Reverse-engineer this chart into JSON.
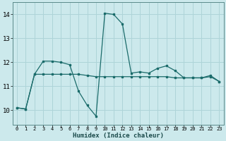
{
  "xlabel": "Humidex (Indice chaleur)",
  "background_color": "#cce9ec",
  "grid_color": "#aed4d8",
  "line_color": "#1a6b6a",
  "x_ticks": [
    0,
    1,
    2,
    3,
    4,
    5,
    6,
    7,
    8,
    9,
    10,
    11,
    12,
    13,
    14,
    15,
    16,
    17,
    18,
    19,
    20,
    21,
    22,
    23
  ],
  "y_ticks": [
    10,
    11,
    12,
    13,
    14
  ],
  "ylim": [
    9.4,
    14.5
  ],
  "xlim": [
    -0.5,
    23.5
  ],
  "line1_x": [
    0,
    1,
    2,
    3,
    4,
    5,
    6,
    7,
    8,
    9,
    10,
    11,
    12,
    13,
    14,
    15,
    16,
    17,
    18,
    19,
    20,
    21,
    22,
    23
  ],
  "line1_y": [
    10.1,
    10.05,
    11.5,
    12.05,
    12.05,
    12.0,
    11.9,
    10.8,
    10.2,
    9.75,
    14.05,
    14.0,
    13.6,
    11.55,
    11.6,
    11.55,
    11.75,
    11.85,
    11.65,
    11.35,
    11.35,
    11.35,
    11.45,
    11.2
  ],
  "line2_x": [
    0,
    1,
    2,
    3,
    4,
    5,
    6,
    7,
    8,
    9,
    10,
    11,
    12,
    13,
    14,
    15,
    16,
    17,
    18,
    19,
    20,
    21,
    22,
    23
  ],
  "line2_y": [
    10.1,
    10.05,
    11.5,
    11.5,
    11.5,
    11.5,
    11.5,
    11.5,
    11.45,
    11.4,
    11.4,
    11.4,
    11.4,
    11.4,
    11.4,
    11.4,
    11.4,
    11.4,
    11.35,
    11.35,
    11.35,
    11.35,
    11.4,
    11.2
  ]
}
